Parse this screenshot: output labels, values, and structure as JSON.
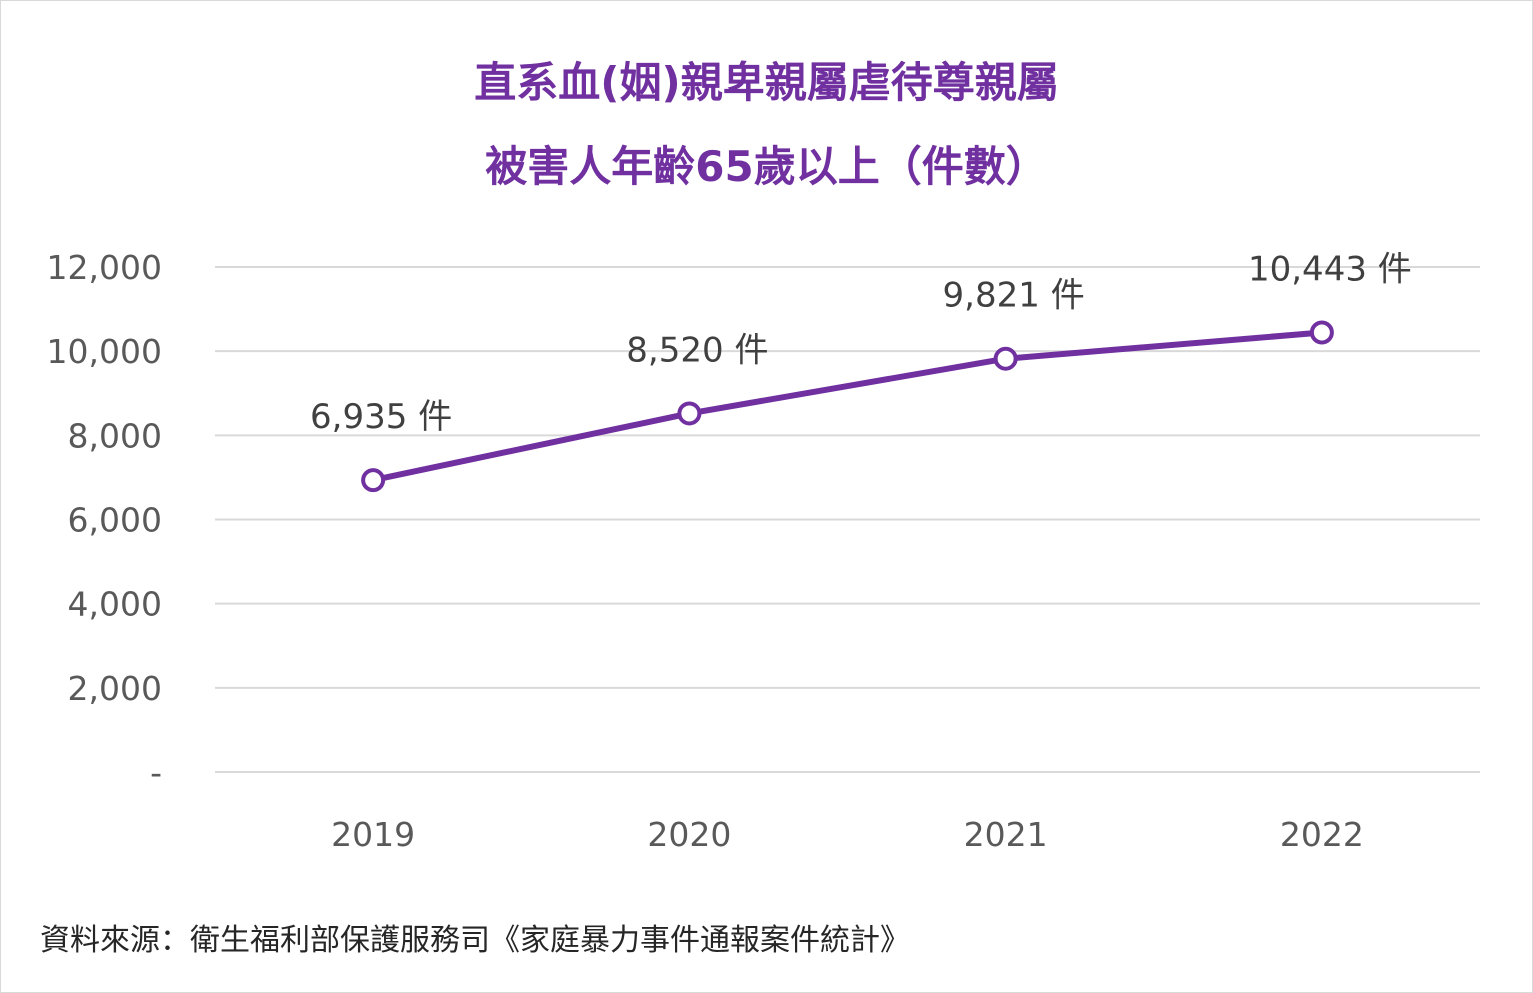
{
  "chart_data": {
    "type": "line",
    "title": [
      "直系血(姻)親卑親屬虐待尊親屬",
      "被害人年齡65歲以上（件數）"
    ],
    "categories": [
      "2019",
      "2020",
      "2021",
      "2022"
    ],
    "series": [
      {
        "values": [
          6935,
          8520,
          9821,
          10443
        ],
        "data_labels": [
          "6,935 件",
          "8,520 件",
          "9,821 件",
          "10,443 件"
        ],
        "color": "#7030a0",
        "marker": "hollow-circle"
      }
    ],
    "ylim": [
      0,
      12000
    ],
    "yticks": [
      0,
      2000,
      4000,
      6000,
      8000,
      10000,
      12000
    ],
    "ytick_labels": [
      "-",
      "2,000",
      "4,000",
      "6,000",
      "8,000",
      "10,000",
      "12,000"
    ],
    "grid": true,
    "legend": "none",
    "xlabel": "",
    "ylabel": ""
  },
  "source": "資料來源：衛生福利部保護服務司《家庭暴力事件通報案件統計》",
  "colors": {
    "line": "#7030a0",
    "title": "#7030a0",
    "grid": "#d9d9d9"
  }
}
